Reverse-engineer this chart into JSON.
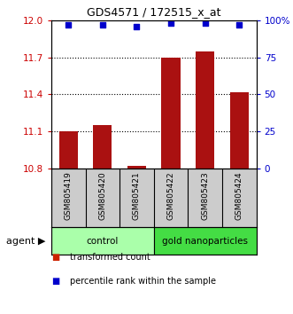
{
  "title": "GDS4571 / 172515_x_at",
  "samples": [
    "GSM805419",
    "GSM805420",
    "GSM805421",
    "GSM805422",
    "GSM805423",
    "GSM805424"
  ],
  "bar_values": [
    11.1,
    11.15,
    10.82,
    11.7,
    11.75,
    11.42
  ],
  "percentile_values": [
    97,
    97,
    96,
    98,
    98,
    97
  ],
  "bar_color": "#aa1111",
  "dot_color": "#0000cc",
  "ylim_left": [
    10.8,
    12.0
  ],
  "ylim_right": [
    0,
    100
  ],
  "yticks_left": [
    10.8,
    11.1,
    11.4,
    11.7,
    12.0
  ],
  "yticks_right": [
    0,
    25,
    50,
    75,
    100
  ],
  "ytick_labels_right": [
    "0",
    "25",
    "50",
    "75",
    "100%"
  ],
  "groups": [
    {
      "label": "control",
      "indices": [
        0,
        1,
        2
      ],
      "color": "#aaffaa"
    },
    {
      "label": "gold nanoparticles",
      "indices": [
        3,
        4,
        5
      ],
      "color": "#44dd44"
    }
  ],
  "agent_label": "agent",
  "legend_items": [
    {
      "color": "#cc2200",
      "label": "transformed count"
    },
    {
      "color": "#0000cc",
      "label": "percentile rank within the sample"
    }
  ],
  "background_color": "#ffffff",
  "plot_bg_color": "#ffffff",
  "label_area_color": "#cccccc",
  "bar_width": 0.55,
  "grid_color": "#000000",
  "dotted_yticks": [
    11.1,
    11.4,
    11.7
  ]
}
